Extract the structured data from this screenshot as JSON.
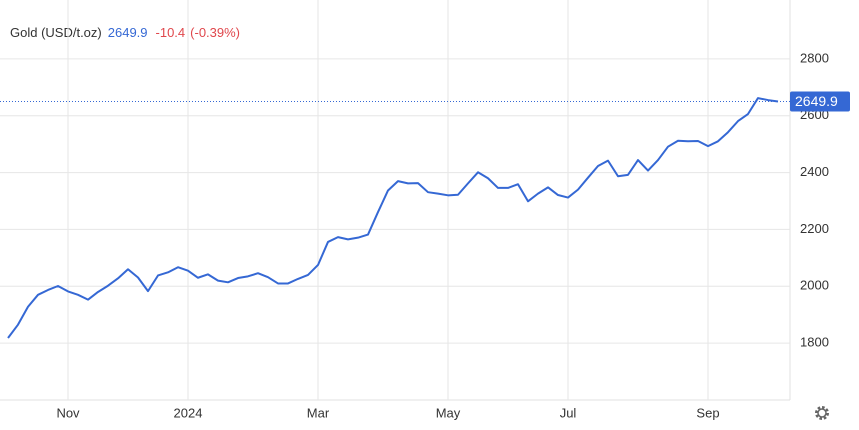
{
  "chart_data": {
    "type": "line",
    "title": "Gold (USD/t.oz)",
    "change": "-10.4",
    "change_pct": "(-0.39%)",
    "color": "#3568d4",
    "change_color": "#e0474c",
    "grid": true,
    "categories": [
      null,
      null,
      null,
      null,
      null,
      null,
      "Nov",
      null,
      null,
      null,
      null,
      null,
      null,
      null,
      null,
      null,
      null,
      null,
      "2024",
      null,
      null,
      null,
      null,
      null,
      null,
      null,
      null,
      null,
      null,
      null,
      null,
      "Mar",
      null,
      null,
      null,
      null,
      null,
      null,
      null,
      null,
      null,
      null,
      null,
      null,
      "May",
      null,
      null,
      null,
      null,
      null,
      null,
      null,
      null,
      null,
      null,
      null,
      "Jul",
      null,
      null,
      null,
      null,
      null,
      null,
      null,
      null,
      null,
      null,
      null,
      null,
      null,
      "Sep",
      null,
      null,
      null,
      null,
      null,
      null,
      null
    ],
    "values": [
      1818,
      1865,
      1928,
      1970,
      1987,
      2001,
      1982,
      1970,
      1953,
      1980,
      2002,
      2028,
      2060,
      2031,
      1983,
      2038,
      2049,
      2067,
      2055,
      2030,
      2042,
      2020,
      2014,
      2029,
      2035,
      2046,
      2032,
      2010,
      2010,
      2026,
      2040,
      2075,
      2156,
      2173,
      2165,
      2171,
      2182,
      2261,
      2337,
      2370,
      2362,
      2363,
      2331,
      2326,
      2320,
      2322,
      2362,
      2401,
      2380,
      2346,
      2346,
      2359,
      2299,
      2326,
      2348,
      2321,
      2312,
      2340,
      2382,
      2423,
      2442,
      2387,
      2392,
      2444,
      2407,
      2444,
      2491,
      2512,
      2510,
      2511,
      2493,
      2510,
      2542,
      2581,
      2606,
      2662,
      2655,
      2649.9
    ],
    "ylim": [
      1600,
      3000
    ],
    "yticks": [
      1800,
      2000,
      2200,
      2400,
      2600,
      2800
    ]
  }
}
